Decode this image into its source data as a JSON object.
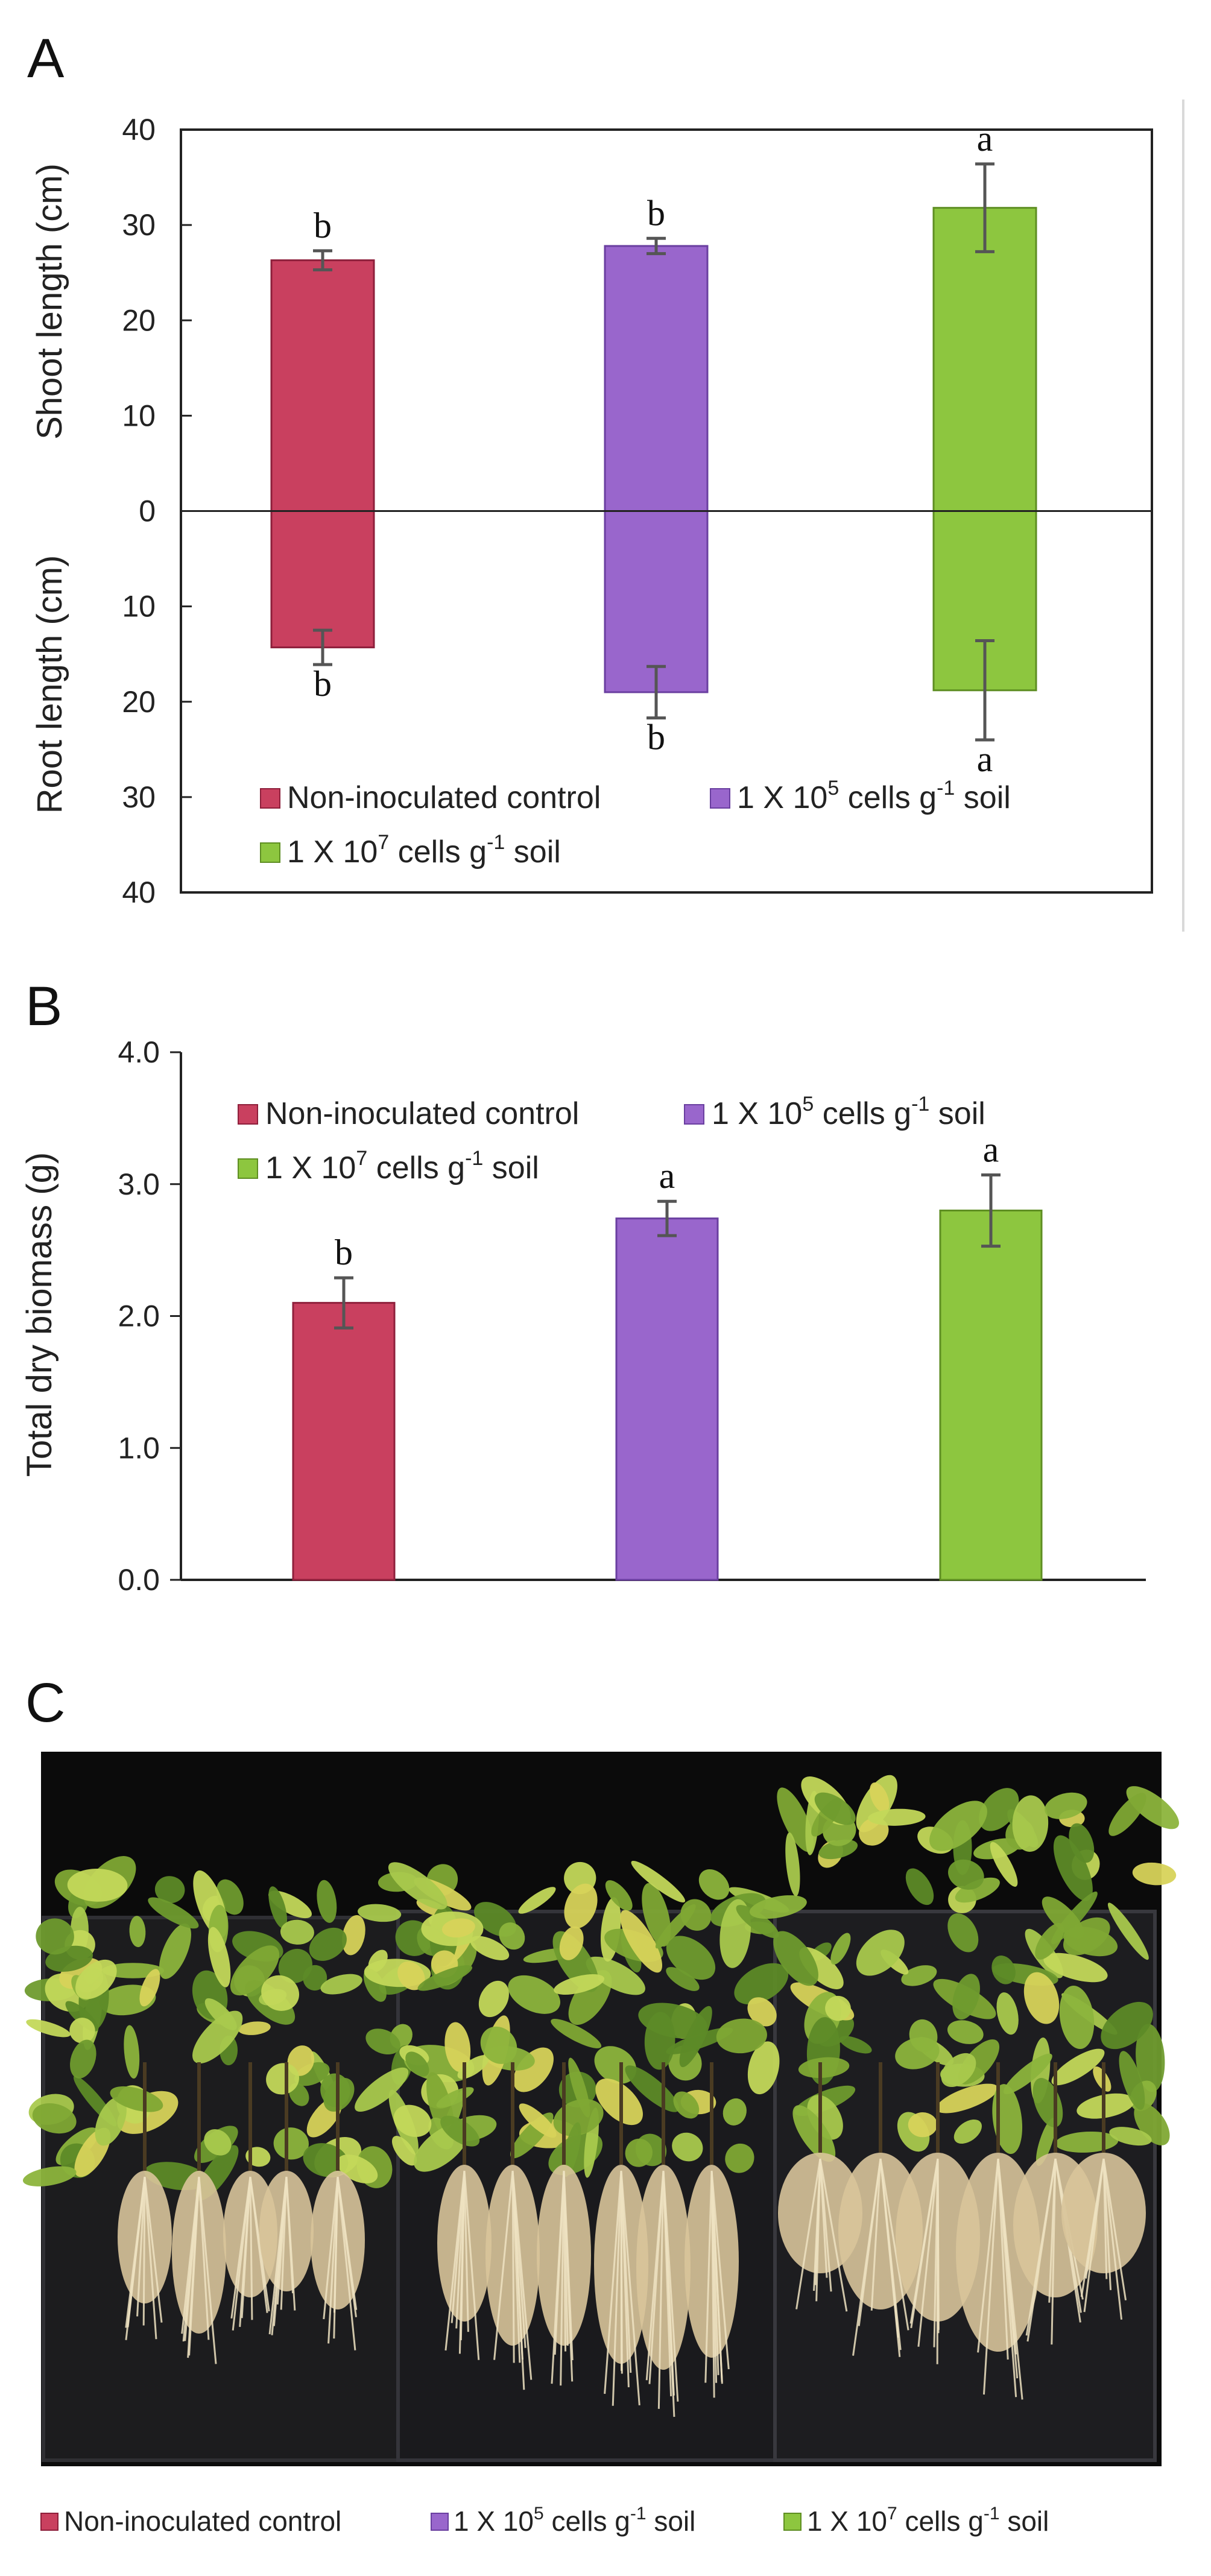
{
  "colors": {
    "control": "#C9405F",
    "low": "#9966CC",
    "high": "#8DC63F",
    "control_stroke": "#8E1F3B",
    "low_stroke": "#6A3FA0",
    "high_stroke": "#5E8E22"
  },
  "panel_labels": {
    "a": "A",
    "b": "B",
    "c": "C"
  },
  "legend": {
    "control": "Non-inoculated control",
    "low_pre": "1 X 10",
    "low_exp": "5",
    "low_mid": " cells g",
    "low_exp2": "-1",
    "low_post": " soil",
    "high_pre": "1 X 10",
    "high_exp": "7",
    "high_mid": " cells g",
    "high_exp2": "-1",
    "high_post": " soil"
  },
  "chart_data": [
    {
      "type": "bar",
      "title": "",
      "categories": [
        "Non-inoculated control",
        "1 X 10^5 cells g^-1 soil",
        "1 X 10^7 cells g^-1 soil"
      ],
      "series": [
        {
          "name": "Shoot length (cm)",
          "values": [
            26.3,
            27.8,
            31.8
          ],
          "errors": [
            1.0,
            0.8,
            4.6
          ],
          "letters": [
            "b",
            "b",
            "a"
          ]
        },
        {
          "name": "Root length (cm)",
          "values": [
            14.3,
            19.0,
            18.8
          ],
          "errors": [
            1.8,
            2.7,
            5.2
          ],
          "letters": [
            "b",
            "b",
            "a"
          ]
        }
      ],
      "ylabel_upper": "Shoot length (cm)",
      "ylabel_lower": "Root length (cm)",
      "yticks_upper": [
        "40",
        "30",
        "20",
        "10",
        "0"
      ],
      "yticks_lower": [
        "10",
        "20",
        "30",
        "40"
      ],
      "ylim": [
        -40,
        40
      ]
    },
    {
      "type": "bar",
      "title": "",
      "categories": [
        "Non-inoculated control",
        "1 X 10^5 cells g^-1 soil",
        "1 X 10^7 cells g^-1 soil"
      ],
      "values": [
        2.1,
        2.74,
        2.8
      ],
      "errors": [
        0.19,
        0.13,
        0.27
      ],
      "letters": [
        "b",
        "a",
        "a"
      ],
      "ylabel": "Total dry biomass (g)",
      "yticks": [
        "4.0",
        "3.0",
        "2.0",
        "1.0",
        "0.0"
      ],
      "ylim": [
        0,
        4
      ]
    }
  ]
}
